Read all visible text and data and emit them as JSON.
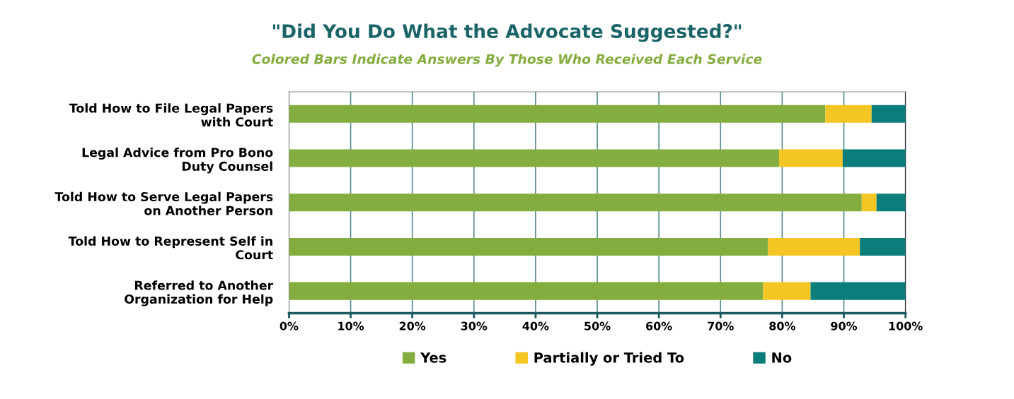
{
  "chart_data": {
    "type": "bar",
    "orientation": "horizontal",
    "stacked": true,
    "title": "\"Did You Do What the Advocate Suggested?\"",
    "subtitle": "Colored Bars Indicate Answers By Those Who Received Each Service",
    "categories": [
      "Told How to File Legal Papers with Court",
      "Legal Advice from Pro Bono Duty Counsel",
      "Told How to Serve Legal Papers on Another Person",
      "Told How to Represent Self in Court",
      "Referred to Another Organization for Help"
    ],
    "series": [
      {
        "name": "Yes",
        "color": "#84ad3f",
        "values": [
          87.0,
          79.5,
          92.9,
          77.7,
          76.9
        ]
      },
      {
        "name": "Partially or Tried To",
        "color": "#f4c623",
        "values": [
          7.5,
          10.3,
          2.4,
          14.9,
          7.7
        ]
      },
      {
        "name": "No",
        "color": "#0b7e7c",
        "values": [
          5.5,
          10.2,
          4.7,
          7.4,
          15.4
        ]
      }
    ],
    "xlim": [
      0,
      100
    ],
    "xticks": [
      {
        "value": 0,
        "label": "0%"
      },
      {
        "value": 10,
        "label": "10%"
      },
      {
        "value": 20,
        "label": "20%"
      },
      {
        "value": 30,
        "label": "30%"
      },
      {
        "value": 40,
        "label": "40%"
      },
      {
        "value": 50,
        "label": "50%"
      },
      {
        "value": 60,
        "label": "60%"
      },
      {
        "value": 70,
        "label": "70%"
      },
      {
        "value": 80,
        "label": "80%"
      },
      {
        "value": 90,
        "label": "90%"
      },
      {
        "value": 100,
        "label": "100%"
      }
    ],
    "grid": "x",
    "legend": "bottom"
  }
}
